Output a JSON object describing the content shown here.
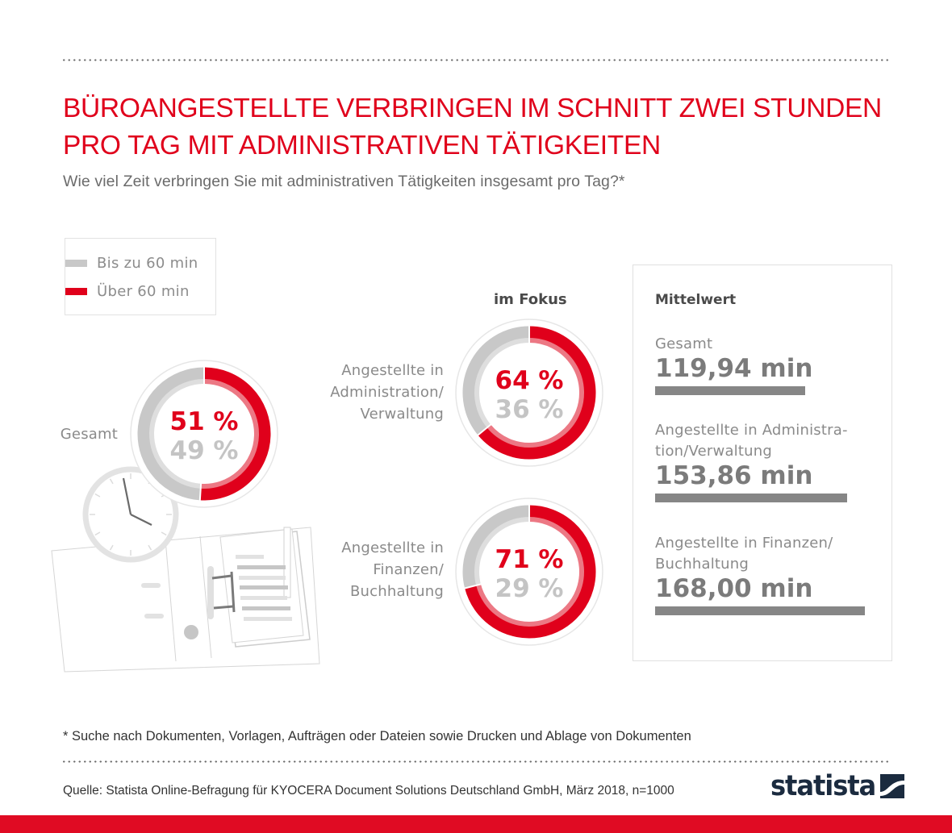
{
  "header": {
    "title_line1": "BÜROANGESTELLTE VERBRINGEN IM SCHNITT ZWEI STUNDEN",
    "title_line2": "PRO TAG MIT ADMINISTRATIVEN TÄTIGKEITEN",
    "subtitle": "Wie viel Zeit verbringen Sie mit administrativen Tätigkeiten insgesamt pro Tag?*"
  },
  "colors": {
    "accent_red": "#e0001b",
    "red_light": "#ec7884",
    "gray_ring": "#c8c8c8",
    "gray_ring_light": "#dedede",
    "gray_text": "#c4c4c4",
    "bar_gray": "#868686",
    "brand_navy": "#1b2b3f"
  },
  "legend": {
    "items": [
      {
        "label": "Bis zu 60 min",
        "color": "#c8c8c8"
      },
      {
        "label": "Über 60 min",
        "color": "#e0001b"
      }
    ]
  },
  "focus_heading": "im Fokus",
  "chart_data": [
    {
      "type": "pie",
      "title": "Gesamt",
      "labels": [
        "Über 60 min",
        "Bis zu 60 min"
      ],
      "values": [
        51,
        49
      ],
      "value_labels": [
        "51 %",
        "49 %"
      ],
      "unit": "%",
      "style": "donut"
    },
    {
      "type": "pie",
      "title": "Angestellte in Administration/ Verwaltung",
      "title_lines": [
        "Angestellte in",
        "Administration/",
        "Verwaltung"
      ],
      "labels": [
        "Über 60 min",
        "Bis zu 60 min"
      ],
      "values": [
        64,
        36
      ],
      "value_labels": [
        "64 %",
        "36 %"
      ],
      "unit": "%",
      "style": "donut"
    },
    {
      "type": "pie",
      "title": "Angestellte in Finanzen/ Buchhaltung",
      "title_lines": [
        "Angestellte in",
        "Finanzen/",
        "Buchhaltung"
      ],
      "labels": [
        "Über 60 min",
        "Bis zu 60 min"
      ],
      "values": [
        71,
        29
      ],
      "value_labels": [
        "71 %",
        "29 %"
      ],
      "unit": "%",
      "style": "donut"
    },
    {
      "type": "bar",
      "title": "Mittelwert",
      "orientation": "horizontal",
      "categories": [
        "Gesamt",
        "Angestellte in Administration/Verwaltung",
        "Angestellte in Finanzen/Buchhaltung"
      ],
      "category_lines": [
        [
          "Gesamt"
        ],
        [
          "Angestellte in Administra-",
          "tion/Verwaltung"
        ],
        [
          "Angestellte in Finanzen/",
          "Buchhaltung"
        ]
      ],
      "values": [
        119.94,
        153.86,
        168.0
      ],
      "value_labels": [
        "119,94 min",
        "153,86 min",
        "168,00 min"
      ],
      "unit": "min",
      "xlim": [
        0,
        168
      ]
    }
  ],
  "donut_label_gesamt": "Gesamt",
  "footnote": "* Suche nach Dokumenten, Vorlagen, Aufträgen oder Dateien sowie Drucken und Ablage von Dokumenten",
  "source": "Quelle: Statista Online-Befragung für KYOCERA Document Solutions Deutschland GmbH, März 2018, n=1000",
  "brand": {
    "name": "statista"
  }
}
